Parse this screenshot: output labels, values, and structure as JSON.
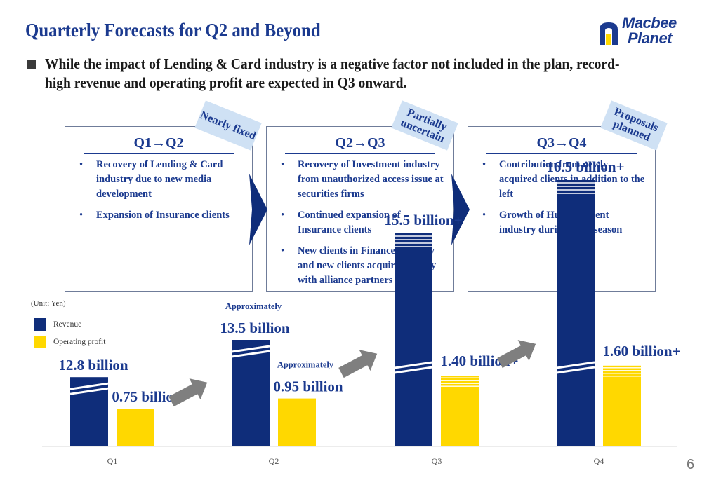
{
  "slide": {
    "title": "Quarterly Forecasts for Q2 and Beyond",
    "headline": "While the impact of Lending & Card industry is a negative factor not included in the plan, record-high revenue and operating profit are expected in Q3 onward.",
    "page_number": "6"
  },
  "logo": {
    "line1": "Macbee",
    "line2": "Planet"
  },
  "boxes": [
    {
      "title": "Q1→Q2",
      "tag": "Nearly fixed",
      "items": [
        "Recovery of Lending & Card industry due to new media development",
        "Expansion of Insurance clients"
      ]
    },
    {
      "title": "Q2→Q3",
      "tag": "Partially uncertain",
      "items": [
        "Recovery of Investment industry from unauthorized access issue at securities firms",
        "Continued expansion of Insurance clients",
        "New clients in Finance industry and new clients acquired jointly with alliance partners"
      ]
    },
    {
      "title": "Q3→Q4",
      "tag": "Proposals planned",
      "items": [
        "Contribution from newly acquired clients in addition to the left",
        "Growth of Human Talent industry during peak season"
      ]
    }
  ],
  "colors": {
    "revenue": "#0f2d7a",
    "profit": "#ffd800",
    "title": "#1b3a8f",
    "arrow": "#7f7f7f"
  },
  "chart_data": {
    "type": "bar",
    "unit_label": "(Unit: Yen)",
    "categories": [
      "Q1",
      "Q2",
      "Q3",
      "Q4"
    ],
    "legend": [
      "Revenue",
      "Operating profit"
    ],
    "series": [
      {
        "name": "Revenue",
        "values": [
          12.8,
          13.5,
          15.5,
          16.5
        ]
      },
      {
        "name": "Operating profit",
        "values": [
          0.75,
          0.95,
          1.4,
          1.6
        ]
      }
    ],
    "revenue_labels": [
      "12.8 billion",
      "13.5 billion",
      "15.5 billion+",
      "16.5 billion+"
    ],
    "profit_labels": [
      "0.75 billion",
      "0.95 billion",
      "1.40 billion+",
      "1.60 billion+"
    ],
    "approx_labels": [
      "",
      "Approximately",
      "",
      ""
    ],
    "approx_profit_labels": [
      "",
      "Approximately",
      "",
      ""
    ],
    "legend_placement": "top-left",
    "grid": false
  }
}
